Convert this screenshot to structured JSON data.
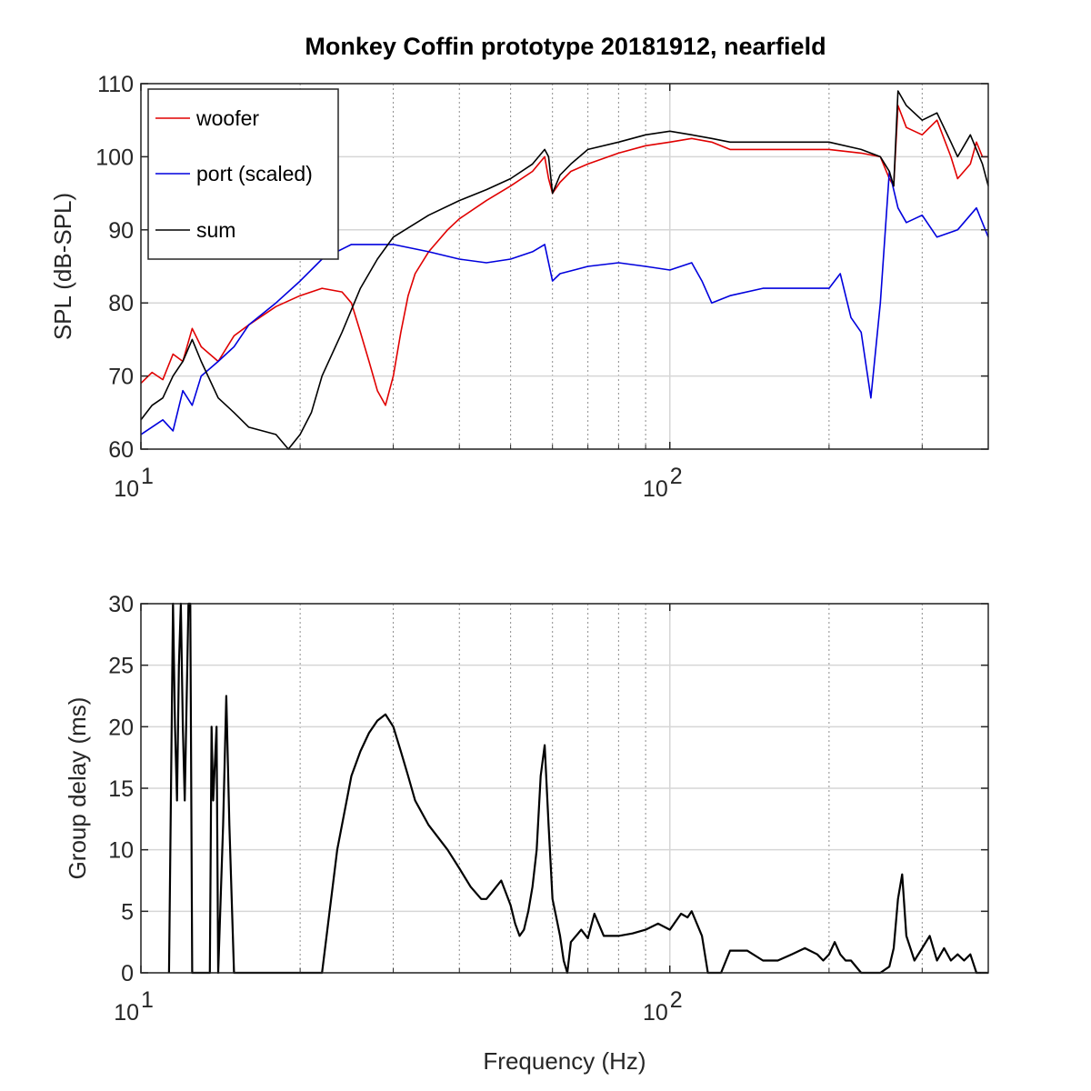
{
  "chart_data": [
    {
      "type": "line",
      "title": "Monkey Coffin prototype 20181912, nearfield",
      "xlabel": "",
      "ylabel": "SPL (dB-SPL)",
      "xscale": "log",
      "xlim": [
        10,
        400
      ],
      "ylim": [
        60,
        110
      ],
      "x_ticks": [
        {
          "base": "10",
          "exp": "1",
          "value": 10
        },
        {
          "base": "10",
          "exp": "2",
          "value": 100
        }
      ],
      "y_ticks": [
        "60",
        "70",
        "80",
        "90",
        "100",
        "110"
      ],
      "grid": true,
      "minor_grid": true,
      "legend": "top-left",
      "series": [
        {
          "name": "woofer",
          "color": "#e00000",
          "x": [
            10,
            10.5,
            11,
            11.5,
            12,
            12.5,
            13,
            14,
            15,
            16,
            18,
            20,
            22,
            24,
            25,
            26,
            27,
            28,
            29,
            30,
            31,
            32,
            33,
            35,
            38,
            40,
            45,
            50,
            55,
            58,
            59,
            60,
            62,
            65,
            70,
            80,
            90,
            100,
            110,
            120,
            130,
            150,
            200,
            230,
            250,
            260,
            265,
            270,
            280,
            300,
            320,
            340,
            350,
            370,
            380,
            390,
            400
          ],
          "values": [
            69,
            70.5,
            69.5,
            73,
            72,
            76.5,
            74,
            72,
            75.5,
            77,
            79.5,
            81,
            82,
            81.5,
            80,
            76,
            72,
            68,
            66,
            70,
            76,
            81,
            84,
            87,
            90,
            91.5,
            94,
            96,
            98,
            100,
            97,
            95,
            96.5,
            98,
            99,
            100.5,
            101.5,
            102,
            102.5,
            102,
            101,
            101,
            101,
            100.5,
            100,
            97,
            96,
            107,
            104,
            103,
            105,
            100,
            97,
            99,
            102,
            100,
            100
          ]
        },
        {
          "name": "port (scaled)",
          "color": "#0000dd",
          "x": [
            10,
            11,
            11.5,
            12,
            12.5,
            13,
            14,
            15,
            16,
            18,
            20,
            22,
            25,
            28,
            30,
            35,
            40,
            45,
            50,
            55,
            58,
            60,
            62,
            70,
            80,
            90,
            100,
            110,
            115,
            120,
            130,
            150,
            200,
            210,
            220,
            230,
            240,
            250,
            260,
            270,
            280,
            300,
            320,
            350,
            380,
            400
          ],
          "values": [
            62,
            64,
            62.5,
            68,
            66,
            70,
            72,
            74,
            77,
            80,
            83,
            86,
            88,
            88,
            88,
            87,
            86,
            85.5,
            86,
            87,
            88,
            83,
            84,
            85,
            85.5,
            85,
            84.5,
            85.5,
            83,
            80,
            81,
            82,
            82,
            84,
            78,
            76,
            67,
            80,
            98,
            93,
            91,
            92,
            89,
            90,
            93,
            89
          ]
        },
        {
          "name": "sum",
          "color": "#000000",
          "x": [
            10,
            10.5,
            11,
            11.5,
            12,
            12.5,
            13,
            14,
            15,
            16,
            18,
            19,
            20,
            21,
            22,
            24,
            26,
            28,
            30,
            35,
            40,
            45,
            50,
            55,
            58,
            59,
            60,
            62,
            65,
            70,
            80,
            90,
            100,
            110,
            120,
            130,
            150,
            200,
            230,
            250,
            260,
            265,
            270,
            280,
            300,
            320,
            340,
            350,
            370,
            390,
            400
          ],
          "values": [
            64,
            66,
            67,
            70,
            72,
            75,
            72,
            67,
            65,
            63,
            62,
            60,
            62,
            65,
            70,
            76,
            82,
            86,
            89,
            92,
            94,
            95.5,
            97,
            99,
            101,
            100,
            95,
            97.5,
            99,
            101,
            102,
            103,
            103.5,
            103,
            102.5,
            102,
            102,
            102,
            101,
            100,
            98,
            96,
            109,
            107,
            105,
            106,
            102,
            100,
            103,
            99,
            96
          ]
        }
      ]
    },
    {
      "type": "line",
      "title": "",
      "xlabel": "Frequency (Hz)",
      "ylabel": "Group delay (ms)",
      "xscale": "log",
      "xlim": [
        10,
        400
      ],
      "ylim": [
        0,
        30
      ],
      "x_ticks": [
        {
          "base": "10",
          "exp": "1",
          "value": 10
        },
        {
          "base": "10",
          "exp": "2",
          "value": 100
        }
      ],
      "y_ticks": [
        "0",
        "5",
        "10",
        "15",
        "20",
        "25",
        "30"
      ],
      "grid": true,
      "minor_grid": true,
      "series": [
        {
          "color": "#000000",
          "x": [
            11.3,
            11.5,
            11.6,
            11.7,
            11.8,
            11.9,
            12,
            12.1,
            12.3,
            12.4,
            12.5,
            13.5,
            13.6,
            13.7,
            13.9,
            14,
            14.3,
            14.5,
            14.7,
            15,
            22,
            23.5,
            25,
            26,
            27,
            28,
            29,
            30,
            31,
            32,
            33,
            35,
            38,
            40,
            42,
            44,
            45,
            46,
            48,
            50,
            51,
            52,
            53,
            54,
            55,
            56,
            57,
            58,
            59,
            60,
            61,
            62,
            63,
            64,
            65,
            68,
            70,
            72,
            75,
            80,
            85,
            90,
            95,
            100,
            105,
            108,
            110,
            115,
            118,
            120,
            125,
            130,
            140,
            150,
            160,
            170,
            180,
            190,
            195,
            200,
            205,
            210,
            215,
            220,
            230,
            240,
            250,
            260,
            265,
            270,
            275,
            280,
            290,
            300,
            310,
            320,
            330,
            340,
            350,
            360,
            370,
            380,
            390,
            400
          ],
          "values": [
            0,
            30,
            20,
            14,
            25,
            30,
            20,
            14,
            30,
            30,
            0,
            0,
            20,
            14,
            20,
            0,
            12,
            22.5,
            12,
            0,
            0,
            10,
            16,
            18,
            19.5,
            20.5,
            21,
            20,
            18,
            16,
            14,
            12,
            10,
            8.5,
            7,
            6,
            6,
            6.5,
            7.5,
            5.5,
            4,
            3,
            3.5,
            5,
            7,
            10,
            16,
            18.5,
            12,
            6,
            4.5,
            3,
            1,
            0,
            2.5,
            3.5,
            2.8,
            4.8,
            3,
            3,
            3.2,
            3.5,
            4,
            3.5,
            4.8,
            4.5,
            5,
            3,
            0,
            0,
            0,
            1.8,
            1.8,
            1,
            1,
            1.5,
            2,
            1.5,
            1,
            1.5,
            2.5,
            1.5,
            1,
            1,
            0,
            0,
            0,
            0.5,
            2,
            6,
            8,
            3,
            1,
            2,
            3,
            1,
            2,
            1,
            1.5,
            1,
            1.5,
            0,
            0,
            0
          ]
        }
      ]
    }
  ]
}
